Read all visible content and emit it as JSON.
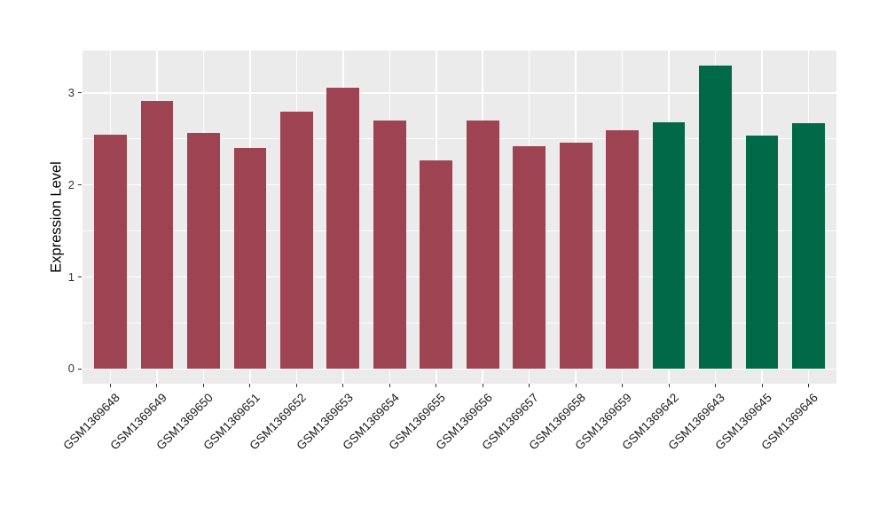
{
  "figure": {
    "background": "#FFFFFF",
    "panel_background": "#EBEBEB",
    "gridline_color": "#FFFFFF",
    "tick_color": "#333333",
    "axis_text_color": "#333333",
    "axis_title_color": "#000000"
  },
  "chart_data": {
    "type": "bar",
    "title": "",
    "xlabel": "",
    "ylabel": "Expression Level",
    "categories": [
      "GSM1369648",
      "GSM1369649",
      "GSM1369650",
      "GSM1369651",
      "GSM1369652",
      "GSM1369653",
      "GSM1369654",
      "GSM1369655",
      "GSM1369656",
      "GSM1369657",
      "GSM1369658",
      "GSM1369659",
      "GSM1369642",
      "GSM1369643",
      "GSM1369645",
      "GSM1369646"
    ],
    "values": [
      2.55,
      2.91,
      2.56,
      2.4,
      2.8,
      3.06,
      2.7,
      2.27,
      2.7,
      2.42,
      2.46,
      2.59,
      2.68,
      3.3,
      2.54,
      2.67
    ],
    "bar_colors": [
      "#9D4351",
      "#9D4351",
      "#9D4351",
      "#9D4351",
      "#9D4351",
      "#9D4351",
      "#9D4351",
      "#9D4351",
      "#9D4351",
      "#9D4351",
      "#9D4351",
      "#9D4351",
      "#006947",
      "#006947",
      "#006947",
      "#006947"
    ],
    "color_groups": {
      "#9D4351": "maroon-group-first-12",
      "#006947": "green-group-last-4"
    },
    "ylim": [
      -0.16,
      3.46
    ],
    "yticks": [
      0,
      1,
      2,
      3
    ],
    "yticks_minor": [
      0.5,
      1.5,
      2.5
    ],
    "grid": true,
    "legend": "none",
    "x_label_rotation_deg": 45
  }
}
